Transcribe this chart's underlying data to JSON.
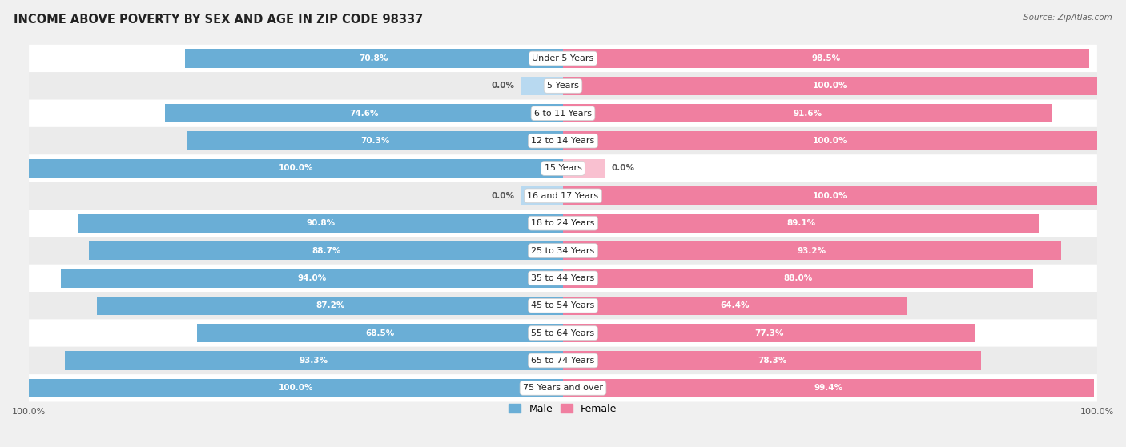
{
  "title": "INCOME ABOVE POVERTY BY SEX AND AGE IN ZIP CODE 98337",
  "source": "Source: ZipAtlas.com",
  "categories": [
    "Under 5 Years",
    "5 Years",
    "6 to 11 Years",
    "12 to 14 Years",
    "15 Years",
    "16 and 17 Years",
    "18 to 24 Years",
    "25 to 34 Years",
    "35 to 44 Years",
    "45 to 54 Years",
    "55 to 64 Years",
    "65 to 74 Years",
    "75 Years and over"
  ],
  "male_values": [
    70.8,
    0.0,
    74.6,
    70.3,
    100.0,
    0.0,
    90.8,
    88.7,
    94.0,
    87.2,
    68.5,
    93.3,
    100.0
  ],
  "female_values": [
    98.5,
    100.0,
    91.6,
    100.0,
    0.0,
    100.0,
    89.1,
    93.2,
    88.0,
    64.4,
    77.3,
    78.3,
    99.4
  ],
  "male_color": "#6aaed6",
  "male_color_light": "#b8d9f0",
  "female_color": "#f07fa0",
  "female_color_light": "#f9c0d0",
  "bg_color": "#f0f0f0",
  "row_colors": [
    "#ffffff",
    "#ebebeb"
  ],
  "title_fontsize": 10.5,
  "source_fontsize": 7.5,
  "value_fontsize": 7.5,
  "label_fontsize": 8,
  "legend_fontsize": 9
}
